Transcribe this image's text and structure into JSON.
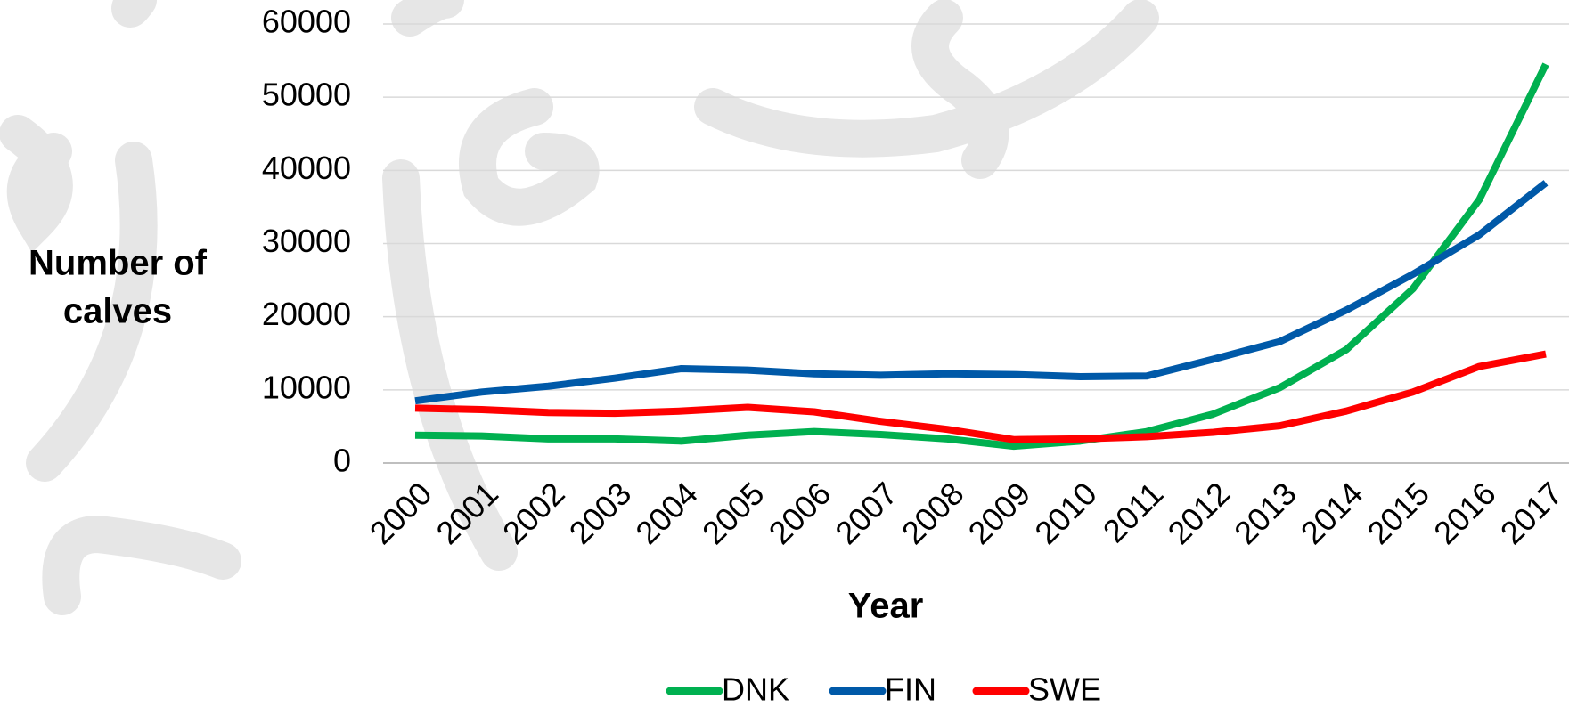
{
  "chart_data": {
    "type": "line",
    "y_label_lines": [
      "Number of",
      "calves"
    ],
    "x_label": "Year",
    "categories": [
      "2000",
      "2001",
      "2002",
      "2003",
      "2004",
      "2005",
      "2006",
      "2007",
      "2008",
      "2009",
      "2010",
      "2011",
      "2012",
      "2013",
      "2014",
      "2015",
      "2016",
      "2017"
    ],
    "series": [
      {
        "name": "DNK",
        "color": "#00b050",
        "values": [
          3800,
          3700,
          3300,
          3300,
          3000,
          3800,
          4300,
          3900,
          3300,
          2300,
          3000,
          4300,
          6700,
          10300,
          15500,
          23800,
          36000,
          54500
        ]
      },
      {
        "name": "FIN",
        "color": "#0059a8",
        "values": [
          8500,
          9700,
          10500,
          11600,
          12900,
          12700,
          12200,
          12000,
          12200,
          12100,
          11800,
          11900,
          14200,
          16600,
          20900,
          25800,
          31200,
          38300
        ]
      },
      {
        "name": "SWE",
        "color": "#ff0000",
        "values": [
          7500,
          7300,
          6900,
          6800,
          7100,
          7600,
          7000,
          5700,
          4600,
          3200,
          3300,
          3600,
          4200,
          5100,
          7100,
          9700,
          13200,
          14900
        ]
      }
    ],
    "ylim": [
      0,
      60000
    ],
    "yticks": [
      0,
      10000,
      20000,
      30000,
      40000,
      50000,
      60000
    ],
    "grid": true
  }
}
